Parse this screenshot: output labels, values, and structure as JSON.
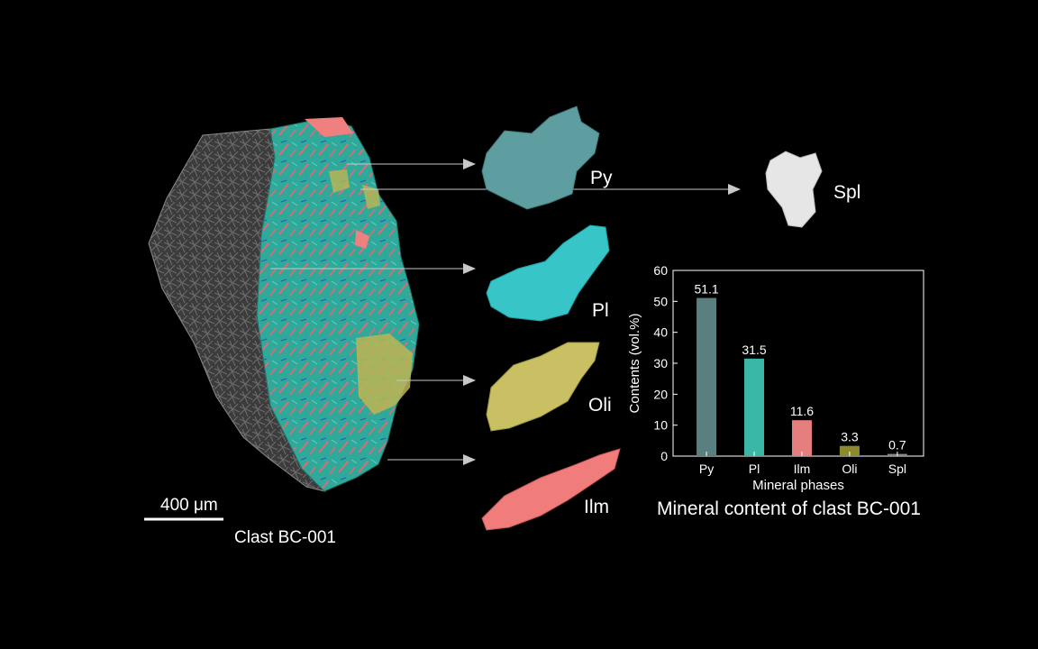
{
  "sample": {
    "caption": "Clast BC-001",
    "scale_bar_label": "400 μm"
  },
  "phases": [
    {
      "abbr": "Py",
      "color": "#5f9ea0"
    },
    {
      "abbr": "Pl",
      "color": "#37c5c8"
    },
    {
      "abbr": "Oli",
      "color": "#c9c063"
    },
    {
      "abbr": "Ilm",
      "color": "#f07c7c"
    },
    {
      "abbr": "Spl",
      "color": "#e6e6e6"
    }
  ],
  "chart_data": {
    "type": "bar",
    "title": "Mineral content of clast BC-001",
    "xlabel": "Mineral phases",
    "ylabel": "Contents (vol.%)",
    "categories": [
      "Py",
      "Pl",
      "Ilm",
      "Oli",
      "Spl"
    ],
    "values": [
      51.1,
      31.5,
      11.6,
      3.3,
      0.7
    ],
    "data_labels": [
      "51.1",
      "31.5",
      "11.6",
      "3.3",
      "0.7"
    ],
    "colors": [
      "#5a7f7f",
      "#3bb7a8",
      "#e57e7e",
      "#8c8a2e",
      "#8a8a8a"
    ],
    "ylim": [
      0,
      60
    ],
    "yticks": [
      0,
      10,
      20,
      30,
      40,
      50,
      60
    ],
    "grid": false,
    "legend": "none"
  }
}
